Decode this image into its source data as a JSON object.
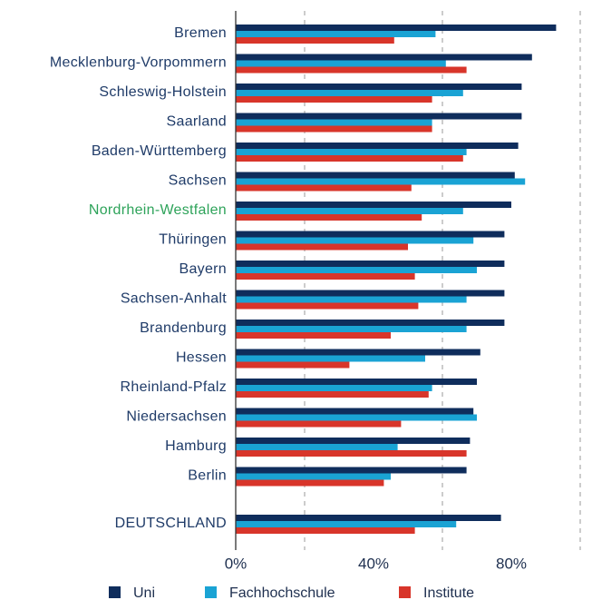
{
  "chart_data": {
    "type": "bar",
    "orientation": "horizontal",
    "categories": [
      "Bremen",
      "Mecklenburg-Vorpommern",
      "Schleswig-Holstein",
      "Saarland",
      "Baden-Württemberg",
      "Sachsen",
      "Nordrhein-Westfalen",
      "Thüringen",
      "Bayern",
      "Sachsen-Anhalt",
      "Brandenburg",
      "Hessen",
      "Rheinland-Pfalz",
      "Niedersachsen",
      "Hamburg",
      "Berlin",
      "DEUTSCHLAND"
    ],
    "category_colors": [
      "#1f3b68",
      "#1f3b68",
      "#1f3b68",
      "#1f3b68",
      "#1f3b68",
      "#1f3b68",
      "#2ea35a",
      "#1f3b68",
      "#1f3b68",
      "#1f3b68",
      "#1f3b68",
      "#1f3b68",
      "#1f3b68",
      "#1f3b68",
      "#1f3b68",
      "#1f3b68",
      "#1f3b68"
    ],
    "series": [
      {
        "name": "Uni",
        "color": "#0f2d5c",
        "values": [
          93,
          86,
          83,
          83,
          82,
          81,
          80,
          78,
          78,
          78,
          78,
          71,
          70,
          69,
          68,
          67,
          77
        ]
      },
      {
        "name": "Fachhochschule",
        "color": "#1aa3d4",
        "values": [
          58,
          61,
          66,
          57,
          67,
          84,
          66,
          69,
          70,
          67,
          67,
          55,
          57,
          70,
          47,
          45,
          64
        ]
      },
      {
        "name": "Institute",
        "color": "#d8352a",
        "values": [
          46,
          67,
          57,
          57,
          66,
          51,
          54,
          50,
          52,
          53,
          45,
          33,
          56,
          48,
          67,
          43,
          52
        ]
      }
    ],
    "xlim": [
      0,
      100
    ],
    "xticks": [
      {
        "value": 0,
        "label": "0%"
      },
      {
        "value": 40,
        "label": "40%"
      },
      {
        "value": 80,
        "label": "80%"
      }
    ],
    "minor_xticks": [
      20,
      60,
      100
    ],
    "grid": true
  }
}
